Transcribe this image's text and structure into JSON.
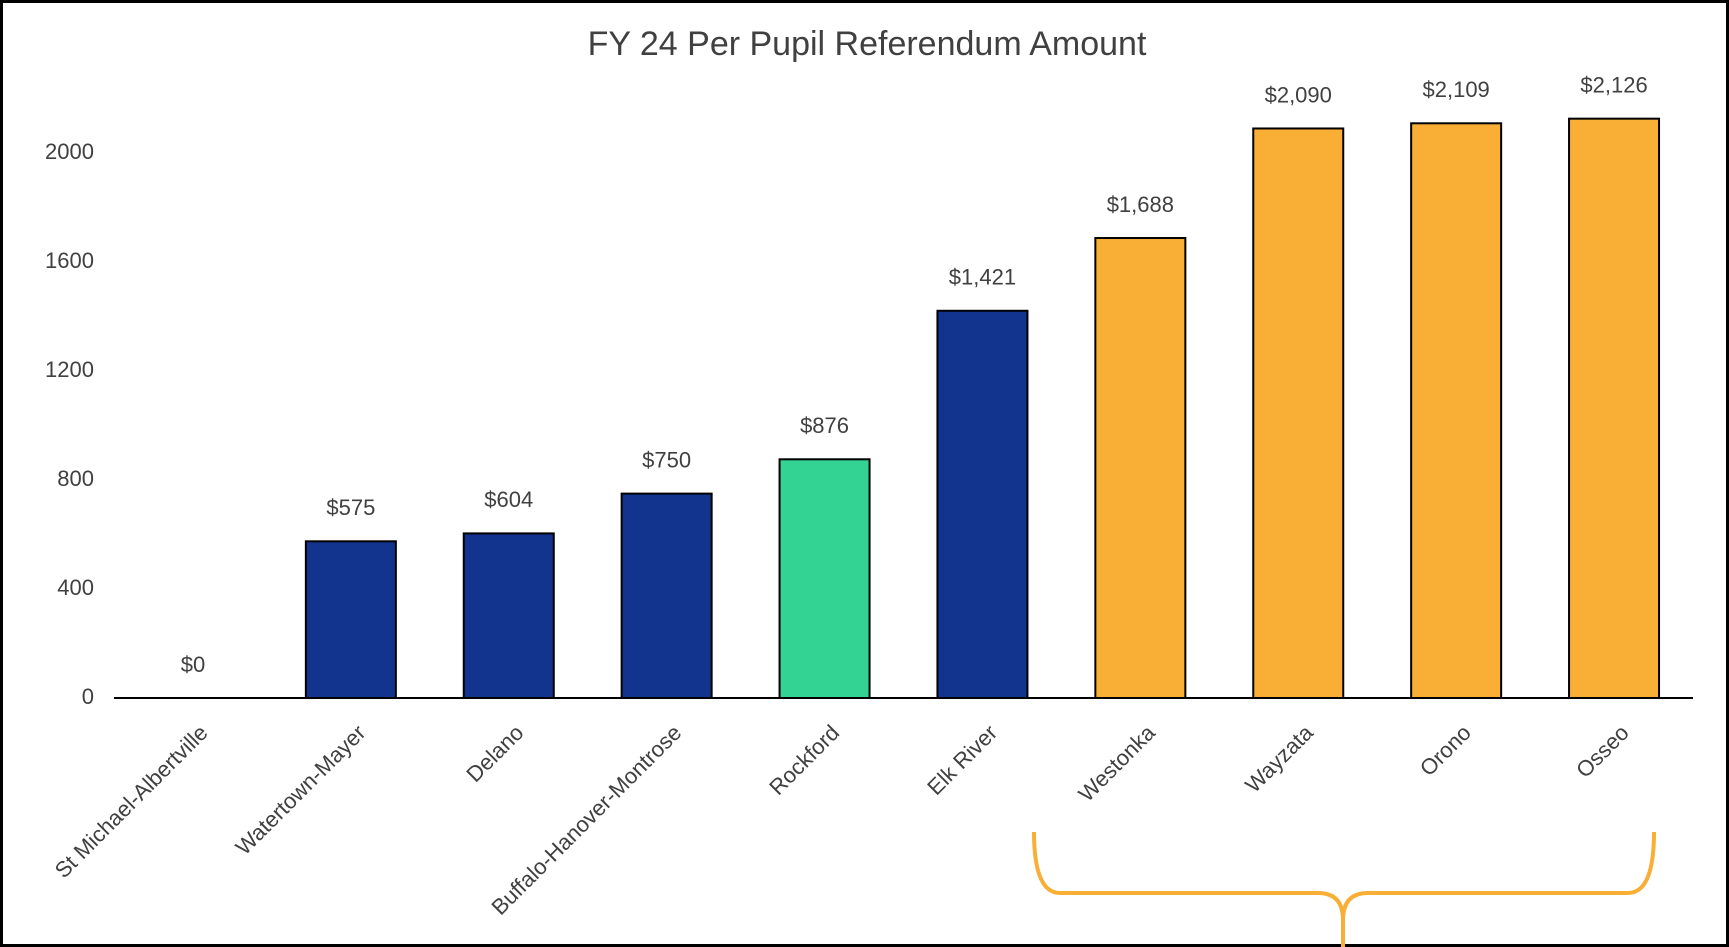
{
  "chart_data": {
    "type": "bar",
    "title": "FY 24 Per Pupil Referendum Amount",
    "categories": [
      "St Michael-Albertville",
      "Watertown-Mayer",
      "Delano",
      "Buffalo-Hanover-Montrose",
      "Rockford",
      "Elk River",
      "Westonka",
      "Wayzata",
      "Orono",
      "Osseo"
    ],
    "values": [
      0,
      575,
      604,
      750,
      876,
      1421,
      1688,
      2090,
      2109,
      2126
    ],
    "value_labels": [
      "$0",
      "$575",
      "$604",
      "$750",
      "$876",
      "$1,421",
      "$1,688",
      "$2,090",
      "$2,109",
      "$2,126"
    ],
    "colors": [
      "#12348f",
      "#12348f",
      "#12348f",
      "#12348f",
      "#33d394",
      "#12348f",
      "#f9ae35",
      "#f9ae35",
      "#f9ae35",
      "#f9ae35"
    ],
    "ylim": [
      0,
      2200
    ],
    "yticks": [
      0,
      400,
      800,
      1200,
      1600,
      2000
    ],
    "grid": false
  }
}
